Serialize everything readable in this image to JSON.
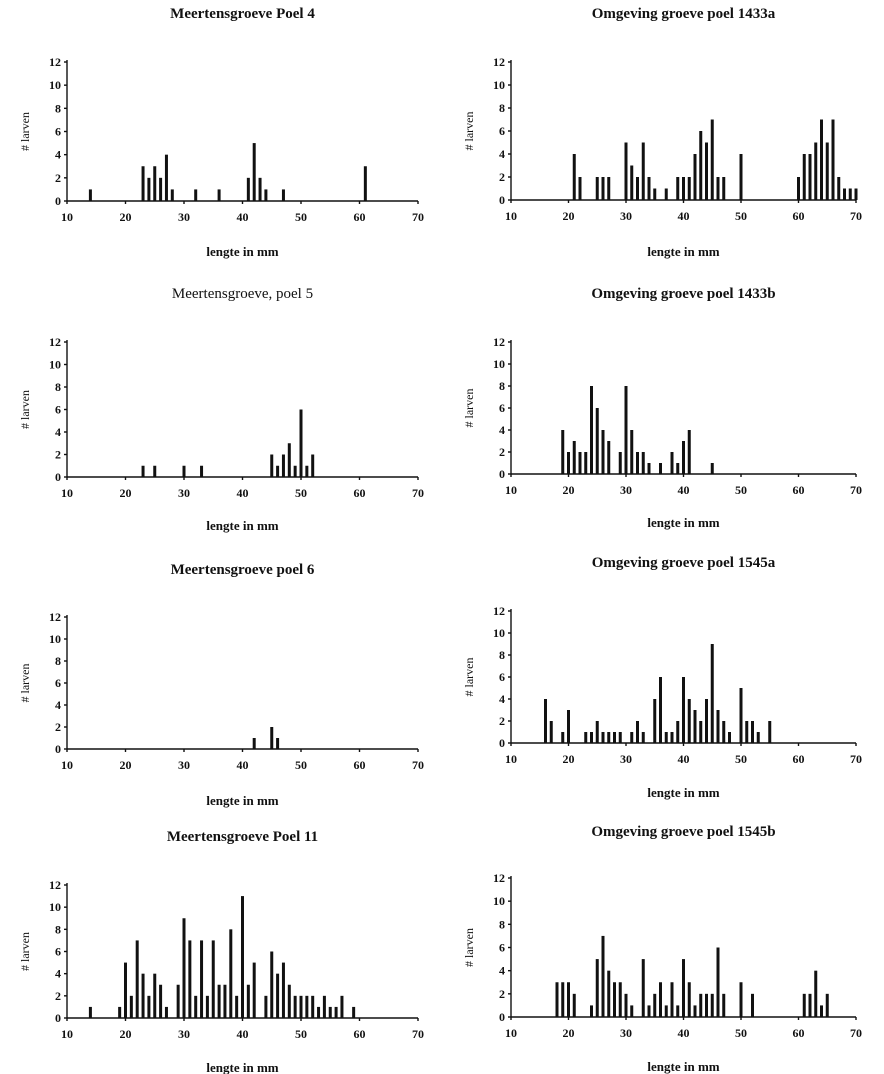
{
  "chart_data": [
    {
      "type": "bar",
      "title": "Meertensgroeve Poel 4",
      "xlabel": "lengte in mm",
      "ylabel": "# larven",
      "xlim": [
        10,
        70
      ],
      "ylim": [
        0,
        12
      ],
      "xticks": [
        10,
        20,
        30,
        40,
        50,
        60,
        70
      ],
      "yticks": [
        0,
        2,
        4,
        6,
        8,
        10,
        12
      ],
      "x": [
        14,
        23,
        24,
        25,
        26,
        27,
        28,
        32,
        36,
        41,
        42,
        43,
        44,
        47,
        61
      ],
      "values": [
        1,
        3,
        2,
        3,
        2,
        4,
        1,
        1,
        1,
        2,
        5,
        2,
        1,
        1,
        3
      ]
    },
    {
      "type": "bar",
      "title": "Omgeving groeve poel 1433a",
      "xlabel": "lengte in mm",
      "ylabel": "# larven",
      "xlim": [
        10,
        70
      ],
      "ylim": [
        0,
        12
      ],
      "xticks": [
        10,
        20,
        30,
        40,
        50,
        60,
        70
      ],
      "yticks": [
        0,
        2,
        4,
        6,
        8,
        10,
        12
      ],
      "x": [
        21,
        22,
        25,
        26,
        27,
        30,
        31,
        32,
        33,
        34,
        35,
        37,
        39,
        40,
        41,
        42,
        43,
        44,
        45,
        46,
        47,
        50,
        60,
        61,
        62,
        63,
        64,
        65,
        66,
        67,
        68,
        69,
        70
      ],
      "values": [
        4,
        2,
        2,
        2,
        2,
        5,
        3,
        2,
        5,
        2,
        1,
        1,
        2,
        2,
        2,
        4,
        6,
        5,
        7,
        2,
        2,
        4,
        2,
        4,
        4,
        5,
        7,
        5,
        7,
        2,
        1,
        1,
        1
      ]
    },
    {
      "type": "bar",
      "title": "Meertensgroeve, poel 5",
      "xlabel": "lengte in mm",
      "ylabel": "# larven",
      "xlim": [
        10,
        70
      ],
      "ylim": [
        0,
        12
      ],
      "xticks": [
        10,
        20,
        30,
        40,
        50,
        60,
        70
      ],
      "yticks": [
        0,
        2,
        4,
        6,
        8,
        10,
        12
      ],
      "x": [
        23,
        25,
        30,
        33,
        45,
        46,
        47,
        48,
        49,
        50,
        51,
        52
      ],
      "values": [
        1,
        1,
        1,
        1,
        2,
        1,
        2,
        3,
        1,
        6,
        1,
        2
      ]
    },
    {
      "type": "bar",
      "title": "Omgeving groeve poel 1433b",
      "xlabel": "lengte in mm",
      "ylabel": "# larven",
      "xlim": [
        10,
        70
      ],
      "ylim": [
        0,
        12
      ],
      "xticks": [
        10,
        20,
        30,
        40,
        50,
        60,
        70
      ],
      "yticks": [
        0,
        2,
        4,
        6,
        8,
        10,
        12
      ],
      "x": [
        19,
        20,
        21,
        22,
        23,
        24,
        25,
        26,
        27,
        29,
        30,
        31,
        32,
        33,
        34,
        36,
        38,
        39,
        40,
        41,
        45
      ],
      "values": [
        4,
        2,
        3,
        2,
        2,
        8,
        6,
        4,
        3,
        2,
        8,
        4,
        2,
        2,
        1,
        1,
        2,
        1,
        3,
        4,
        1
      ]
    },
    {
      "type": "bar",
      "title": "Meertensgroeve poel 6",
      "xlabel": "lengte in mm",
      "ylabel": "# larven",
      "xlim": [
        10,
        70
      ],
      "ylim": [
        0,
        12
      ],
      "xticks": [
        10,
        20,
        30,
        40,
        50,
        60,
        70
      ],
      "yticks": [
        0,
        2,
        4,
        6,
        8,
        10,
        12
      ],
      "x": [
        42,
        45,
        46
      ],
      "values": [
        1,
        2,
        1
      ]
    },
    {
      "type": "bar",
      "title": "Omgeving groeve poel 1545a",
      "xlabel": "lengte in mm",
      "ylabel": "# larven",
      "xlim": [
        10,
        70
      ],
      "ylim": [
        0,
        12
      ],
      "xticks": [
        10,
        20,
        30,
        40,
        50,
        60,
        70
      ],
      "yticks": [
        0,
        2,
        4,
        6,
        8,
        10,
        12
      ],
      "x": [
        16,
        17,
        19,
        20,
        23,
        24,
        25,
        26,
        27,
        28,
        29,
        31,
        32,
        33,
        35,
        36,
        37,
        38,
        39,
        40,
        41,
        42,
        43,
        44,
        45,
        46,
        47,
        48,
        50,
        51,
        52,
        53,
        55
      ],
      "values": [
        4,
        2,
        1,
        3,
        1,
        1,
        2,
        1,
        1,
        1,
        1,
        1,
        2,
        1,
        4,
        6,
        1,
        1,
        2,
        6,
        4,
        3,
        2,
        4,
        9,
        3,
        2,
        1,
        5,
        2,
        2,
        1,
        2
      ]
    },
    {
      "type": "bar",
      "title": "Meertensgroeve Poel 11",
      "xlabel": "lengte in mm",
      "ylabel": "# larven",
      "xlim": [
        10,
        70
      ],
      "ylim": [
        0,
        12
      ],
      "xticks": [
        10,
        20,
        30,
        40,
        50,
        60,
        70
      ],
      "yticks": [
        0,
        2,
        4,
        6,
        8,
        10,
        12
      ],
      "x": [
        14,
        19,
        20,
        21,
        22,
        23,
        24,
        25,
        26,
        27,
        29,
        30,
        31,
        32,
        33,
        34,
        35,
        36,
        37,
        38,
        39,
        40,
        41,
        42,
        44,
        45,
        46,
        47,
        48,
        49,
        50,
        51,
        52,
        53,
        54,
        55,
        56,
        57,
        59
      ],
      "values": [
        1,
        1,
        5,
        2,
        7,
        4,
        2,
        4,
        3,
        1,
        3,
        9,
        7,
        2,
        7,
        2,
        7,
        3,
        3,
        8,
        2,
        11,
        3,
        5,
        2,
        6,
        4,
        5,
        3,
        2,
        2,
        2,
        2,
        1,
        2,
        1,
        1,
        2,
        1
      ]
    },
    {
      "type": "bar",
      "title": "Omgeving groeve poel 1545b",
      "xlabel": "lengte in mm",
      "ylabel": "# larven",
      "xlim": [
        10,
        70
      ],
      "ylim": [
        0,
        12
      ],
      "xticks": [
        10,
        20,
        30,
        40,
        50,
        60,
        70
      ],
      "yticks": [
        0,
        2,
        4,
        6,
        8,
        10,
        12
      ],
      "x": [
        18,
        19,
        20,
        21,
        24,
        25,
        26,
        27,
        28,
        29,
        30,
        31,
        33,
        34,
        35,
        36,
        37,
        38,
        39,
        40,
        41,
        42,
        43,
        44,
        45,
        46,
        47,
        50,
        52,
        61,
        62,
        63,
        64,
        65
      ],
      "values": [
        3,
        3,
        3,
        2,
        1,
        5,
        7,
        4,
        3,
        3,
        2,
        1,
        5,
        1,
        2,
        3,
        1,
        3,
        1,
        5,
        3,
        1,
        2,
        2,
        2,
        6,
        2,
        3,
        2,
        2,
        2,
        4,
        1,
        2
      ]
    }
  ]
}
